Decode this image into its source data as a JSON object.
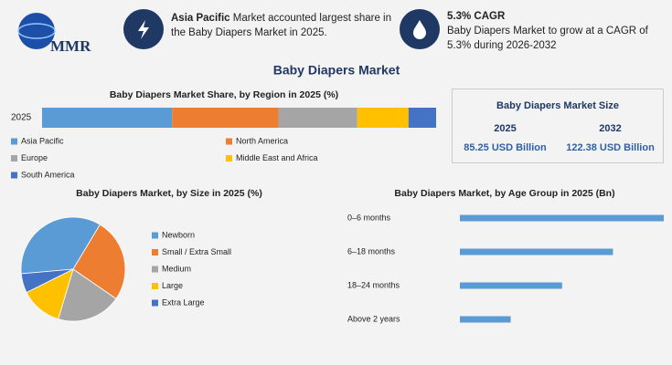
{
  "logo": "MMR",
  "title": "Baby Diapers Market",
  "highlights": [
    {
      "title": "Asia Pacific",
      "text": "Market accounted largest share in the Baby Diapers Market in 2025."
    },
    {
      "title": "5.3% CAGR",
      "text": "Baby Diapers Market to grow at a CAGR of 5.3% during 2026-2032"
    }
  ],
  "market_size": {
    "title": "Baby Diapers Market Size",
    "columns": [
      {
        "year": "2025",
        "value": "85.25 USD Billion"
      },
      {
        "year": "2032",
        "value": "122.38 USD Billion"
      }
    ]
  },
  "chart_data": [
    {
      "type": "bar",
      "stacked": true,
      "orientation": "horizontal",
      "title": "Baby Diapers Market Share, by Region in 2025 (%)",
      "categories": [
        "2025"
      ],
      "series": [
        {
          "name": "Asia Pacific",
          "color": "#5b9bd5",
          "values": [
            33
          ]
        },
        {
          "name": "North America",
          "color": "#ed7d31",
          "values": [
            27
          ]
        },
        {
          "name": "Europe",
          "color": "#a5a5a5",
          "values": [
            20
          ]
        },
        {
          "name": "Middle East and Africa",
          "color": "#ffc000",
          "values": [
            13
          ]
        },
        {
          "name": "South America",
          "color": "#4472c4",
          "values": [
            7
          ]
        }
      ]
    },
    {
      "type": "pie",
      "title": "Baby Diapers Market, by Size in 2025 (%)",
      "categories": [
        "Newborn",
        "Small / Extra Small",
        "Medium",
        "Large",
        "Extra Large"
      ],
      "values": [
        35,
        26,
        20,
        13,
        6
      ],
      "colors": [
        "#5b9bd5",
        "#ed7d31",
        "#a5a5a5",
        "#ffc000",
        "#4472c4"
      ]
    },
    {
      "type": "bar",
      "stacked": false,
      "orientation": "horizontal",
      "title": "Baby Diapers Market, by Age Group in 2025 (Bn)",
      "categories": [
        "0–6 months",
        "6–18 months",
        "18–24 months",
        "Above 2 years"
      ],
      "values": [
        34.1,
        25.6,
        17.1,
        8.5
      ],
      "color": "#5b9bd5"
    }
  ]
}
